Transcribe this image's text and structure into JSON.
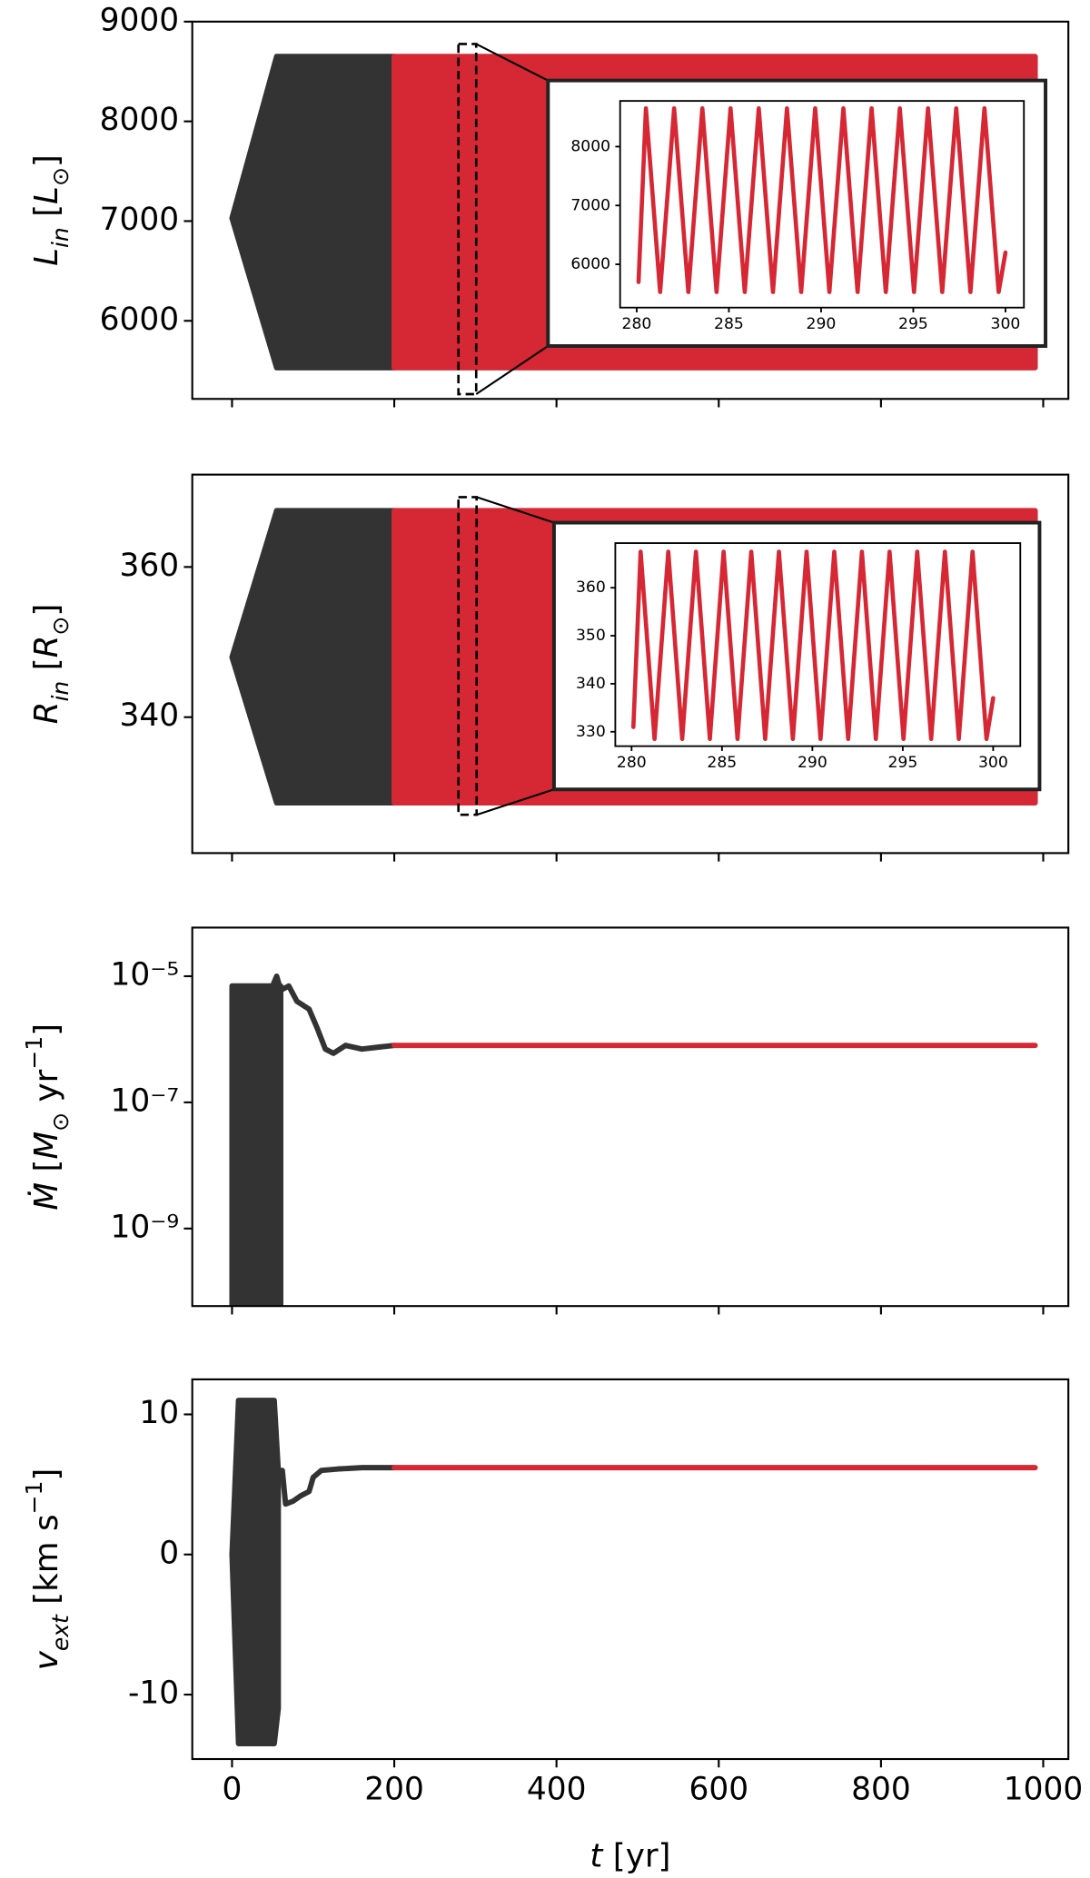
{
  "chart_data": [
    {
      "type": "line",
      "ylabel": [
        {
          "text": "L",
          "italic": true
        },
        {
          "text": "in",
          "italic": true,
          "shift": "sub"
        },
        {
          "text": " ["
        },
        {
          "text": "L",
          "italic": true
        },
        {
          "text": "⊙",
          "shift": "sub"
        },
        {
          "text": "]"
        }
      ],
      "xlim": [
        -49,
        1031
      ],
      "xticks": [
        0,
        200,
        400,
        600,
        800,
        1000
      ],
      "xtick_labels": false,
      "ylim": [
        5217,
        9000
      ],
      "yticks": [
        6000,
        7000,
        8000,
        9000
      ],
      "log": false,
      "series": [
        {
          "color": "#333333",
          "x": [
            0,
            55,
            200
          ],
          "upper": [
            7030,
            8650,
            8650
          ],
          "lower": [
            7030,
            5530,
            5530
          ]
        },
        {
          "color": "#d62834",
          "x": [
            200,
            990
          ],
          "upper": [
            8650,
            8650
          ],
          "lower": [
            5530,
            5530
          ]
        }
      ],
      "inset": {
        "xlim": [
          279.1,
          301.0
        ],
        "xticks": [
          280,
          285,
          290,
          295,
          300
        ],
        "xtick_labels": true,
        "ylim": [
          5265,
          8776
        ],
        "yticks": [
          6000,
          7000,
          8000
        ],
        "log": false,
        "series": [
          {
            "color": "#d62834",
            "x": [
              280.1,
              280.5,
              281.27,
              282.03,
              282.8,
              283.56,
              284.33,
              285.09,
              285.86,
              286.62,
              287.39,
              288.15,
              288.92,
              289.68,
              290.45,
              291.21,
              291.98,
              292.74,
              293.51,
              294.27,
              295.04,
              295.8,
              296.57,
              297.33,
              298.1,
              298.86,
              299.63,
              300.0
            ],
            "values": [
              5700,
              8650,
              5530,
              8650,
              5530,
              8650,
              5530,
              8650,
              5530,
              8650,
              5530,
              8650,
              5530,
              8650,
              5530,
              8650,
              5530,
              8650,
              5530,
              8650,
              5530,
              8650,
              5530,
              8650,
              5530,
              8650,
              5530,
              6200
            ]
          }
        ]
      }
    },
    {
      "type": "line",
      "ylabel": [
        {
          "text": "R",
          "italic": true
        },
        {
          "text": "in",
          "italic": true,
          "shift": "sub"
        },
        {
          "text": " ["
        },
        {
          "text": "R",
          "italic": true
        },
        {
          "text": "⊙",
          "shift": "sub"
        },
        {
          "text": "]"
        }
      ],
      "xlim": [
        -49,
        1031
      ],
      "xticks": [
        0,
        200,
        400,
        600,
        800,
        1000
      ],
      "xtick_labels": false,
      "ylim": [
        321.9,
        372.3
      ],
      "yticks": [
        340,
        360
      ],
      "log": false,
      "series": [
        {
          "color": "#333333",
          "x": [
            0,
            55,
            200
          ],
          "upper": [
            348,
            367.5,
            367.5
          ],
          "lower": [
            348,
            328.6,
            328.6
          ]
        },
        {
          "color": "#d62834",
          "x": [
            200,
            990
          ],
          "upper": [
            367.5,
            367.5
          ],
          "lower": [
            328.6,
            328.6
          ]
        }
      ],
      "inset": {
        "xlim": [
          279.1,
          301.5
        ],
        "xticks": [
          280,
          285,
          290,
          295,
          300
        ],
        "xtick_labels": true,
        "ylim": [
          327,
          369.3
        ],
        "yticks": [
          330,
          340,
          350,
          360
        ],
        "log": false,
        "series": [
          {
            "color": "#d62834",
            "x": [
              280.1,
              280.5,
              281.27,
              282.03,
              282.8,
              283.56,
              284.33,
              285.09,
              285.86,
              286.62,
              287.39,
              288.15,
              288.92,
              289.68,
              290.45,
              291.21,
              291.98,
              292.74,
              293.51,
              294.27,
              295.04,
              295.8,
              296.57,
              297.33,
              298.1,
              298.86,
              299.63,
              300.0
            ],
            "values": [
              331,
              367.5,
              328.5,
              367.5,
              328.5,
              367.5,
              328.5,
              367.5,
              328.5,
              367.5,
              328.5,
              367.5,
              328.5,
              367.5,
              328.5,
              367.5,
              328.5,
              367.5,
              328.5,
              367.5,
              328.5,
              367.5,
              328.5,
              367.5,
              328.5,
              367.5,
              328.5,
              337
            ]
          }
        ]
      }
    },
    {
      "type": "line",
      "ylabel": [
        {
          "text": "Ṁ",
          "italic": true
        },
        {
          "text": " ["
        },
        {
          "text": "M",
          "italic": true
        },
        {
          "text": "⊙",
          "shift": "sub"
        },
        {
          "text": " yr"
        },
        {
          "text": "−1",
          "shift": "super"
        },
        {
          "text": "]"
        }
      ],
      "xlim": [
        -49,
        1031
      ],
      "xticks": [
        0,
        200,
        400,
        600,
        800,
        1000
      ],
      "xtick_labels": false,
      "ylim": [
        5.9e-11,
        5.9e-05
      ],
      "log": true,
      "yticks": [
        {
          "value": 1e-09,
          "label": "10⁻⁹"
        },
        {
          "value": 1e-07,
          "label": "10⁻⁷"
        },
        {
          "value": 1e-05,
          "label": "10⁻⁵"
        }
      ],
      "series": [
        {
          "color": "#333333",
          "x": [
            0,
            60
          ],
          "upper": [
            7e-06,
            7e-06
          ],
          "lower": [
            1e-11,
            1e-11
          ]
        },
        {
          "color": "#333333",
          "x": [
            50,
            55,
            60,
            70,
            80,
            95,
            105,
            115,
            125,
            140,
            160,
            180,
            200
          ],
          "values": [
            7e-06,
            1e-05,
            6e-06,
            7e-06,
            4e-06,
            3e-06,
            1.5e-06,
            7e-07,
            6e-07,
            8e-07,
            7e-07,
            7.5e-07,
            8e-07
          ]
        },
        {
          "color": "#d62834",
          "x": [
            200,
            990
          ],
          "values": [
            8e-07,
            8e-07
          ]
        }
      ]
    },
    {
      "type": "line",
      "ylabel": [
        {
          "text": "v",
          "italic": true
        },
        {
          "text": "ext",
          "italic": true,
          "shift": "sub"
        },
        {
          "text": " [km s"
        },
        {
          "text": "−1",
          "shift": "super"
        },
        {
          "text": "]"
        }
      ],
      "xlabel": [
        {
          "text": "t",
          "italic": true
        },
        {
          "text": " [yr]"
        }
      ],
      "xlim": [
        -49,
        1031
      ],
      "xticks": [
        0,
        200,
        400,
        600,
        800,
        1000
      ],
      "xtick_labels": true,
      "ylim": [
        -14.6,
        12.5
      ],
      "yticks": [
        -10,
        0,
        10
      ],
      "log": false,
      "series": [
        {
          "color": "#333333",
          "x": [
            0,
            8,
            52,
            57
          ],
          "upper": [
            0,
            11,
            11,
            6
          ],
          "lower": [
            0,
            -13.5,
            -13.5,
            -11
          ]
        },
        {
          "color": "#333333",
          "x": [
            57,
            62,
            66,
            75,
            85,
            95,
            100,
            110,
            130,
            160,
            200
          ],
          "values": [
            6,
            6,
            3.6,
            3.8,
            4.2,
            4.5,
            5.5,
            6,
            6.1,
            6.2,
            6.2
          ]
        },
        {
          "color": "#d62834",
          "x": [
            200,
            990
          ],
          "values": [
            6.2,
            6.2
          ]
        }
      ]
    }
  ]
}
